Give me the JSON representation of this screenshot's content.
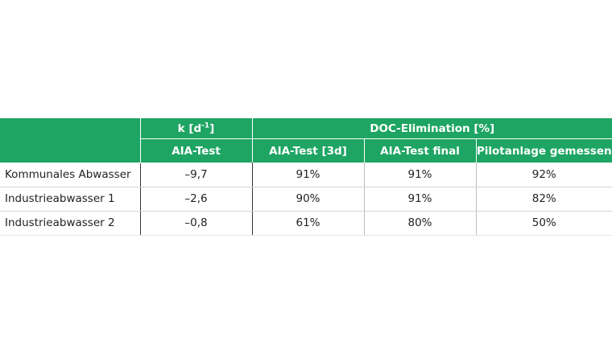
{
  "table": {
    "header": {
      "k_group_label": "k [d",
      "k_group_sup": "-1",
      "k_group_close": "]",
      "doc_group_label": "DOC-Elimination [%]",
      "columns": [
        "AIA-Test",
        "AIA-Test [3d]",
        "AIA-Test final",
        "Pilotanlage gemessen"
      ]
    },
    "rows": [
      {
        "label": "Kommunales Abwasser",
        "k": "–9,7",
        "aia3d": "91%",
        "final": "91%",
        "pilot": "92%"
      },
      {
        "label": "Industrieabwasser 1",
        "k": "–2,6",
        "aia3d": "90%",
        "final": "91%",
        "pilot": "82%"
      },
      {
        "label": "Industrieabwasser 2",
        "k": "–0,8",
        "aia3d": "61%",
        "final": "80%",
        "pilot": "50%"
      }
    ]
  },
  "colors": {
    "header_bg": "#1ea563",
    "header_text": "#ffffff"
  }
}
